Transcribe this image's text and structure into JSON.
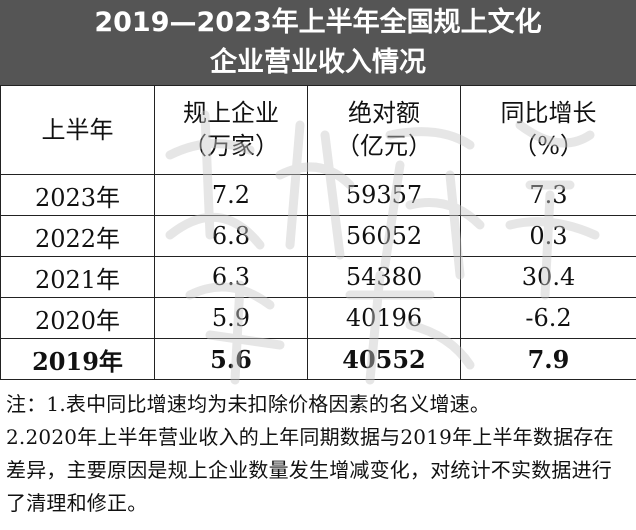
{
  "title": {
    "line1": "2019—2023年上半年全国规上文化",
    "line2": "企业营业收入情况"
  },
  "table": {
    "headers": [
      [
        "上半年"
      ],
      [
        "规上企业",
        "（万家）"
      ],
      [
        "绝对额",
        "（亿元）"
      ],
      [
        "同比增长",
        "（%）"
      ]
    ],
    "rows": [
      {
        "year": "2023年",
        "enterprises": "7.2",
        "amount": "59357",
        "growth": "7.3"
      },
      {
        "year": "2022年",
        "enterprises": "6.8",
        "amount": "56052",
        "growth": "0.3"
      },
      {
        "year": "2021年",
        "enterprises": "6.3",
        "amount": "54380",
        "growth": "30.4"
      },
      {
        "year": "2020年",
        "enterprises": "5.9",
        "amount": "40196",
        "growth": "-6.2"
      },
      {
        "year": "2019年",
        "enterprises": "5.6",
        "amount": "40552",
        "growth": "7.9"
      }
    ]
  },
  "notes": {
    "note1": "注：1.表中同比增速均为未扣除价格因素的名义增速。",
    "note2": "2.2020年上半年营业收入的上年同期数据与2019年上半年数据存在差异，主要原因是规上企业数量发生增减变化，对统计不实数据进行了清理和修正。"
  },
  "watermark": {
    "text": "文化产业评论"
  },
  "colors": {
    "title_bg": "#555555",
    "title_text": "#ffffff",
    "border": "#222222"
  }
}
